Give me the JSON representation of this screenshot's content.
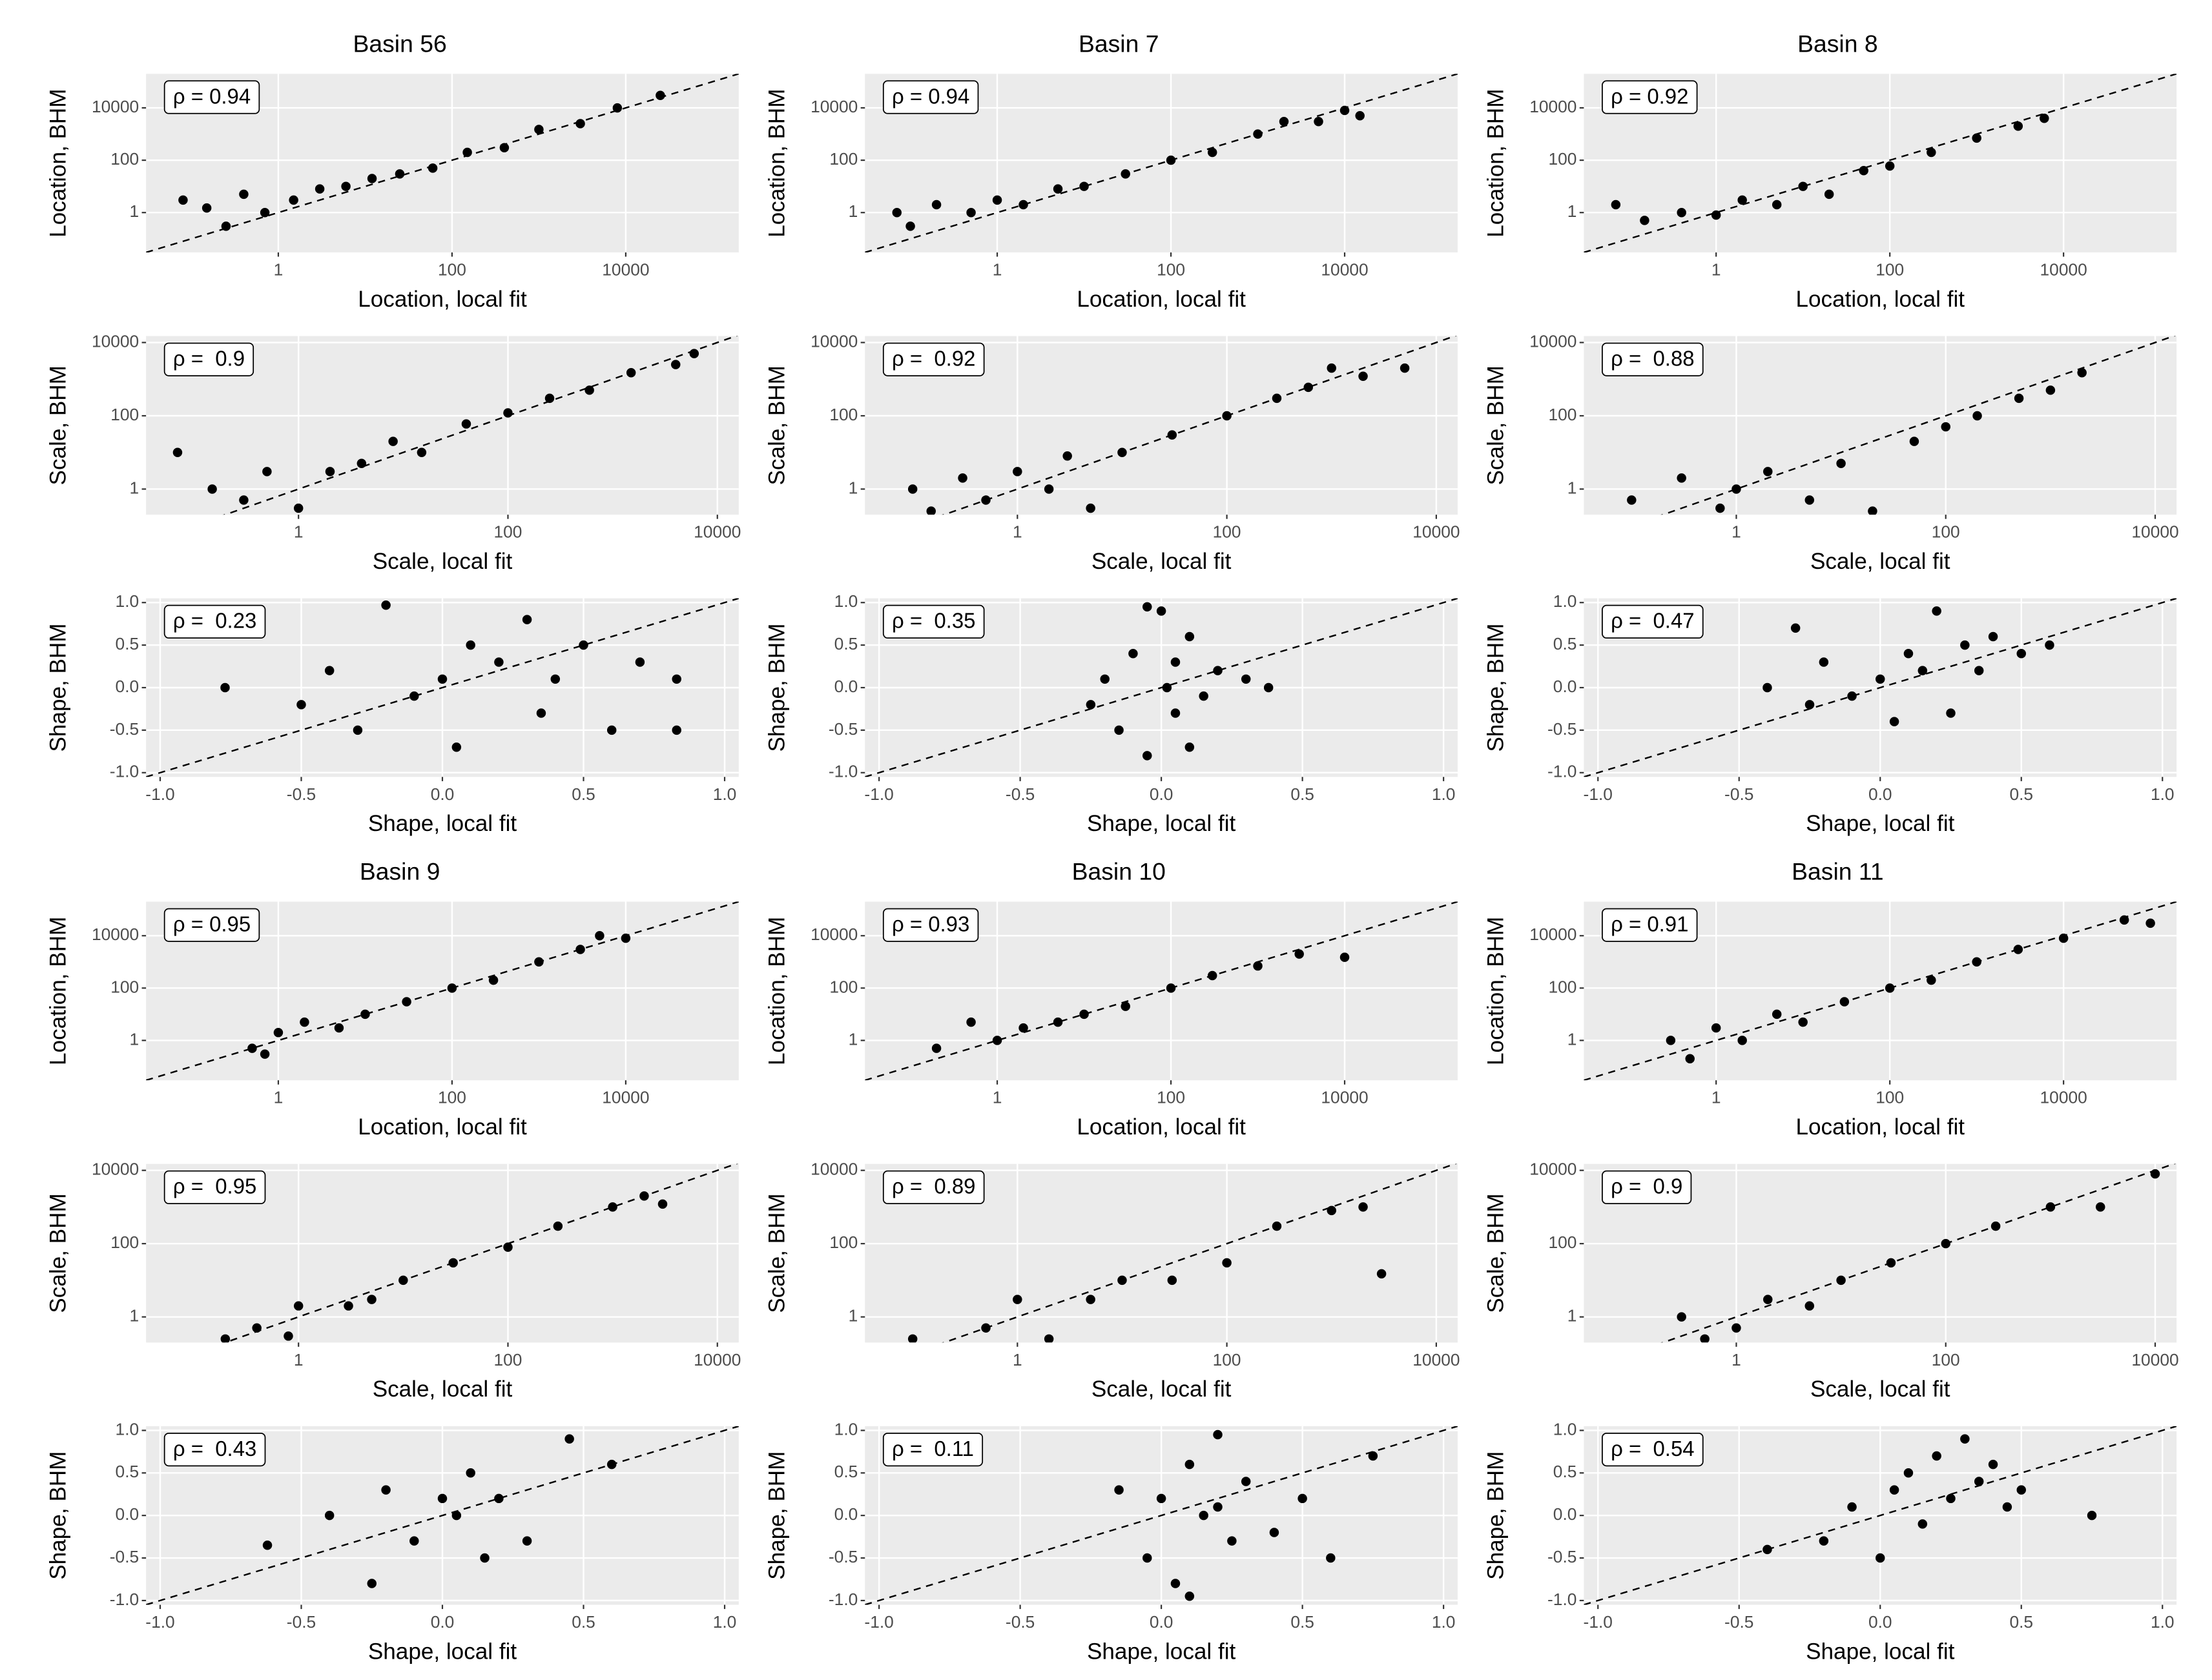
{
  "chart_data": [
    {
      "type": "scatter",
      "title": "Basin 56",
      "annotation": "ρ = 0.94",
      "xlabel": "Location, local fit",
      "ylabel": "Location, BHM",
      "log": true,
      "xlim": [
        0.03,
        200000
      ],
      "ylim": [
        0.03,
        200000
      ],
      "xticks": [
        1,
        100,
        10000
      ],
      "yticks": [
        1,
        100,
        10000
      ],
      "x": [
        0.08,
        0.15,
        0.25,
        0.4,
        0.7,
        1.5,
        3,
        6,
        12,
        25,
        60,
        150,
        400,
        1000,
        3000,
        8000,
        25000
      ],
      "values": [
        3,
        1.5,
        0.3,
        5,
        1,
        3,
        8,
        10,
        20,
        30,
        50,
        200,
        300,
        1500,
        2500,
        10000,
        30000
      ]
    },
    {
      "type": "scatter",
      "annotation": "ρ =  0.9",
      "xlabel": "Scale, local fit",
      "ylabel": "Scale, BHM",
      "log": true,
      "xlim": [
        0.035,
        16000
      ],
      "ylim": [
        0.2,
        15000
      ],
      "xticks": [
        1,
        100,
        10000
      ],
      "yticks": [
        1,
        100,
        10000
      ],
      "x": [
        0.07,
        0.15,
        0.3,
        0.5,
        1,
        2,
        4,
        8,
        15,
        40,
        100,
        250,
        600,
        1500,
        4000,
        6000
      ],
      "values": [
        10,
        1,
        0.5,
        3,
        0.3,
        3,
        5,
        20,
        10,
        60,
        120,
        300,
        500,
        1500,
        2500,
        5000
      ]
    },
    {
      "type": "scatter",
      "annotation": "ρ =  0.23",
      "xlabel": "Shape, local fit",
      "ylabel": "Shape, BHM",
      "log": false,
      "xlim": [
        -1.05,
        1.05
      ],
      "ylim": [
        -1.05,
        1.05
      ],
      "xticks": [
        {
          "value": -1,
          "label": "-1.0"
        },
        {
          "value": -0.5,
          "label": "-0.5"
        },
        {
          "value": 0,
          "label": "0.0"
        },
        {
          "value": 0.5,
          "label": "0.5"
        },
        {
          "value": 1,
          "label": "1.0"
        }
      ],
      "yticks": [
        {
          "value": -1,
          "label": "-1.0"
        },
        {
          "value": -0.5,
          "label": "-0.5"
        },
        {
          "value": 0,
          "label": "0.0"
        },
        {
          "value": 0.5,
          "label": "0.5"
        },
        {
          "value": 1,
          "label": "1.0"
        }
      ],
      "x": [
        -0.77,
        -0.5,
        -0.4,
        -0.3,
        -0.2,
        -0.1,
        0,
        0.05,
        0.1,
        0.2,
        0.3,
        0.35,
        0.4,
        0.5,
        0.6,
        0.7,
        0.83,
        0.83
      ],
      "values": [
        0,
        -0.2,
        0.2,
        -0.5,
        0.97,
        -0.1,
        0.1,
        -0.7,
        0.5,
        0.3,
        0.8,
        -0.3,
        0.1,
        0.5,
        -0.5,
        0.3,
        0.1,
        -0.5
      ]
    },
    {
      "type": "scatter",
      "title": "Basin 7",
      "annotation": "ρ = 0.94",
      "xlabel": "Location, local fit",
      "ylabel": "Location, BHM",
      "log": true,
      "xlim": [
        0.03,
        200000
      ],
      "ylim": [
        0.03,
        200000
      ],
      "xticks": [
        1,
        100,
        10000
      ],
      "yticks": [
        1,
        100,
        10000
      ],
      "x": [
        0.07,
        0.1,
        0.2,
        0.5,
        1,
        2,
        5,
        10,
        30,
        100,
        300,
        1000,
        2000,
        5000,
        10000,
        15000
      ],
      "values": [
        1,
        0.3,
        2,
        1,
        3,
        2,
        8,
        10,
        30,
        100,
        200,
        1000,
        3000,
        3000,
        8000,
        5000
      ]
    },
    {
      "type": "scatter",
      "annotation": "ρ =  0.92",
      "xlabel": "Scale, local fit",
      "ylabel": "Scale, BHM",
      "log": true,
      "xlim": [
        0.035,
        16000
      ],
      "ylim": [
        0.2,
        15000
      ],
      "xticks": [
        1,
        100,
        10000
      ],
      "yticks": [
        1,
        100,
        10000
      ],
      "x": [
        0.1,
        0.15,
        0.3,
        0.5,
        1,
        2,
        3,
        5,
        10,
        30,
        100,
        300,
        600,
        1000,
        2000,
        5000
      ],
      "values": [
        1,
        0.25,
        2,
        0.5,
        3,
        1,
        8,
        0.3,
        10,
        30,
        100,
        300,
        600,
        2000,
        1200,
        2000
      ]
    },
    {
      "type": "scatter",
      "annotation": "ρ =  0.35",
      "xlabel": "Shape, local fit",
      "ylabel": "Shape, BHM",
      "log": false,
      "xlim": [
        -1.05,
        1.05
      ],
      "ylim": [
        -1.05,
        1.05
      ],
      "xticks": [
        {
          "value": -1,
          "label": "-1.0"
        },
        {
          "value": -0.5,
          "label": "-0.5"
        },
        {
          "value": 0,
          "label": "0.0"
        },
        {
          "value": 0.5,
          "label": "0.5"
        },
        {
          "value": 1,
          "label": "1.0"
        }
      ],
      "yticks": [
        {
          "value": -1,
          "label": "-1.0"
        },
        {
          "value": -0.5,
          "label": "-0.5"
        },
        {
          "value": 0,
          "label": "0.0"
        },
        {
          "value": 0.5,
          "label": "0.5"
        },
        {
          "value": 1,
          "label": "1.0"
        }
      ],
      "x": [
        -0.25,
        -0.2,
        -0.15,
        -0.1,
        -0.05,
        0,
        0.02,
        0.05,
        0.1,
        0.15,
        0.2,
        0.3,
        0.38,
        -0.05,
        0.1,
        0.05
      ],
      "values": [
        -0.2,
        0.1,
        -0.5,
        0.4,
        -0.8,
        0.9,
        0,
        -0.3,
        0.6,
        -0.1,
        0.2,
        0.1,
        0,
        0.95,
        -0.7,
        0.3
      ]
    },
    {
      "type": "scatter",
      "title": "Basin 8",
      "annotation": "ρ = 0.92",
      "xlabel": "Location, local fit",
      "ylabel": "Location, BHM",
      "log": true,
      "xlim": [
        0.03,
        200000
      ],
      "ylim": [
        0.03,
        200000
      ],
      "xticks": [
        1,
        100,
        10000
      ],
      "yticks": [
        1,
        100,
        10000
      ],
      "x": [
        0.07,
        0.15,
        0.4,
        1,
        2,
        5,
        10,
        20,
        50,
        100,
        300,
        1000,
        3000,
        6000
      ],
      "values": [
        2,
        0.5,
        1,
        0.8,
        3,
        2,
        10,
        5,
        40,
        60,
        200,
        700,
        2000,
        4000
      ]
    },
    {
      "type": "scatter",
      "annotation": "ρ =  0.88",
      "xlabel": "Scale, local fit",
      "ylabel": "Scale, BHM",
      "log": true,
      "xlim": [
        0.035,
        16000
      ],
      "ylim": [
        0.2,
        15000
      ],
      "xticks": [
        1,
        100,
        10000
      ],
      "yticks": [
        1,
        100,
        10000
      ],
      "x": [
        0.1,
        0.3,
        0.7,
        1,
        2,
        5,
        10,
        20,
        50,
        100,
        200,
        500,
        1000,
        2000
      ],
      "values": [
        0.5,
        2,
        0.3,
        1,
        3,
        0.5,
        5,
        0.25,
        20,
        50,
        100,
        300,
        500,
        1500
      ]
    },
    {
      "type": "scatter",
      "annotation": "ρ =  0.47",
      "xlabel": "Shape, local fit",
      "ylabel": "Shape, BHM",
      "log": false,
      "xlim": [
        -1.05,
        1.05
      ],
      "ylim": [
        -1.05,
        1.05
      ],
      "xticks": [
        {
          "value": -1,
          "label": "-1.0"
        },
        {
          "value": -0.5,
          "label": "-0.5"
        },
        {
          "value": 0,
          "label": "0.0"
        },
        {
          "value": 0.5,
          "label": "0.5"
        },
        {
          "value": 1,
          "label": "1.0"
        }
      ],
      "yticks": [
        {
          "value": -1,
          "label": "-1.0"
        },
        {
          "value": -0.5,
          "label": "-0.5"
        },
        {
          "value": 0,
          "label": "0.0"
        },
        {
          "value": 0.5,
          "label": "0.5"
        },
        {
          "value": 1,
          "label": "1.0"
        }
      ],
      "x": [
        -0.4,
        -0.3,
        -0.25,
        -0.2,
        -0.1,
        0,
        0.05,
        0.1,
        0.15,
        0.2,
        0.25,
        0.3,
        0.35,
        0.4,
        0.5,
        0.6
      ],
      "values": [
        0,
        0.7,
        -0.2,
        0.3,
        -0.1,
        0.1,
        -0.4,
        0.4,
        0.2,
        0.9,
        -0.3,
        0.5,
        0.2,
        0.6,
        0.4,
        0.5
      ]
    },
    {
      "type": "scatter",
      "title": "Basin 9",
      "annotation": "ρ = 0.95",
      "xlabel": "Location, local fit",
      "ylabel": "Location, BHM",
      "log": true,
      "xlim": [
        0.03,
        200000
      ],
      "ylim": [
        0.03,
        200000
      ],
      "xticks": [
        1,
        100,
        10000
      ],
      "yticks": [
        1,
        100,
        10000
      ],
      "x": [
        0.5,
        0.7,
        1,
        2,
        5,
        10,
        30,
        100,
        300,
        1000,
        3000,
        5000,
        10000
      ],
      "values": [
        0.5,
        0.3,
        2,
        5,
        3,
        10,
        30,
        100,
        200,
        1000,
        3000,
        10000,
        8000
      ]
    },
    {
      "type": "scatter",
      "annotation": "ρ =  0.95",
      "xlabel": "Scale, local fit",
      "ylabel": "Scale, BHM",
      "log": true,
      "xlim": [
        0.035,
        16000
      ],
      "ylim": [
        0.2,
        15000
      ],
      "xticks": [
        1,
        100,
        10000
      ],
      "yticks": [
        1,
        100,
        10000
      ],
      "x": [
        0.2,
        0.4,
        0.8,
        1,
        3,
        5,
        10,
        30,
        100,
        300,
        1000,
        2000,
        3000
      ],
      "values": [
        0.25,
        0.5,
        0.3,
        2,
        2,
        3,
        10,
        30,
        80,
        300,
        1000,
        2000,
        1200
      ]
    },
    {
      "type": "scatter",
      "annotation": "ρ =  0.43",
      "xlabel": "Shape, local fit",
      "ylabel": "Shape, BHM",
      "log": false,
      "xlim": [
        -1.05,
        1.05
      ],
      "ylim": [
        -1.05,
        1.05
      ],
      "xticks": [
        {
          "value": -1,
          "label": "-1.0"
        },
        {
          "value": -0.5,
          "label": "-0.5"
        },
        {
          "value": 0,
          "label": "0.0"
        },
        {
          "value": 0.5,
          "label": "0.5"
        },
        {
          "value": 1,
          "label": "1.0"
        }
      ],
      "yticks": [
        {
          "value": -1,
          "label": "-1.0"
        },
        {
          "value": -0.5,
          "label": "-0.5"
        },
        {
          "value": 0,
          "label": "0.0"
        },
        {
          "value": 0.5,
          "label": "0.5"
        },
        {
          "value": 1,
          "label": "1.0"
        }
      ],
      "x": [
        -0.62,
        -0.4,
        -0.25,
        -0.2,
        -0.1,
        0,
        0.05,
        0.1,
        0.15,
        0.2,
        0.3,
        0.45,
        0.6
      ],
      "values": [
        -0.35,
        0,
        -0.8,
        0.3,
        -0.3,
        0.2,
        0,
        0.5,
        -0.5,
        0.2,
        -0.3,
        0.9,
        0.6
      ]
    },
    {
      "type": "scatter",
      "title": "Basin 10",
      "annotation": "ρ = 0.93",
      "xlabel": "Location, local fit",
      "ylabel": "Location, BHM",
      "log": true,
      "xlim": [
        0.03,
        200000
      ],
      "ylim": [
        0.03,
        200000
      ],
      "xticks": [
        1,
        100,
        10000
      ],
      "yticks": [
        1,
        100,
        10000
      ],
      "x": [
        0.2,
        0.5,
        1,
        2,
        5,
        10,
        30,
        100,
        300,
        1000,
        3000,
        10000
      ],
      "values": [
        0.5,
        5,
        1,
        3,
        5,
        10,
        20,
        100,
        300,
        700,
        2000,
        1500
      ]
    },
    {
      "type": "scatter",
      "annotation": "ρ =  0.89",
      "xlabel": "Scale, local fit",
      "ylabel": "Scale, BHM",
      "log": true,
      "xlim": [
        0.035,
        16000
      ],
      "ylim": [
        0.2,
        15000
      ],
      "xticks": [
        1,
        100,
        10000
      ],
      "yticks": [
        1,
        100,
        10000
      ],
      "x": [
        0.1,
        0.5,
        1,
        2,
        5,
        10,
        30,
        100,
        300,
        1000,
        2000,
        3000
      ],
      "values": [
        0.25,
        0.5,
        3,
        0.25,
        3,
        10,
        10,
        30,
        300,
        800,
        1000,
        15
      ]
    },
    {
      "type": "scatter",
      "annotation": "ρ =  0.11",
      "xlabel": "Shape, local fit",
      "ylabel": "Shape, BHM",
      "log": false,
      "xlim": [
        -1.05,
        1.05
      ],
      "ylim": [
        -1.05,
        1.05
      ],
      "xticks": [
        {
          "value": -1,
          "label": "-1.0"
        },
        {
          "value": -0.5,
          "label": "-0.5"
        },
        {
          "value": 0,
          "label": "0.0"
        },
        {
          "value": 0.5,
          "label": "0.5"
        },
        {
          "value": 1,
          "label": "1.0"
        }
      ],
      "yticks": [
        {
          "value": -1,
          "label": "-1.0"
        },
        {
          "value": -0.5,
          "label": "-0.5"
        },
        {
          "value": 0,
          "label": "0.0"
        },
        {
          "value": 0.5,
          "label": "0.5"
        },
        {
          "value": 1,
          "label": "1.0"
        }
      ],
      "x": [
        -0.15,
        -0.05,
        0,
        0.05,
        0.1,
        0.15,
        0.2,
        0.25,
        0.3,
        0.4,
        0.5,
        0.6,
        0.75,
        0.1,
        0.2
      ],
      "values": [
        0.3,
        -0.5,
        0.2,
        -0.8,
        0.6,
        0,
        0.95,
        -0.3,
        0.4,
        -0.2,
        0.2,
        -0.5,
        0.7,
        -0.95,
        0.1
      ]
    },
    {
      "type": "scatter",
      "title": "Basin 11",
      "annotation": "ρ = 0.91",
      "xlabel": "Location, local fit",
      "ylabel": "Location, BHM",
      "log": true,
      "xlim": [
        0.03,
        200000
      ],
      "ylim": [
        0.03,
        200000
      ],
      "xticks": [
        1,
        100,
        10000
      ],
      "yticks": [
        1,
        100,
        10000
      ],
      "x": [
        0.3,
        0.5,
        1,
        2,
        5,
        10,
        30,
        100,
        300,
        1000,
        3000,
        10000,
        50000,
        100000
      ],
      "values": [
        1,
        0.2,
        3,
        1,
        10,
        5,
        30,
        100,
        200,
        1000,
        3000,
        8000,
        40000,
        30000
      ]
    },
    {
      "type": "scatter",
      "annotation": "ρ =  0.9",
      "xlabel": "Scale, local fit",
      "ylabel": "Scale, BHM",
      "log": true,
      "xlim": [
        0.035,
        16000
      ],
      "ylim": [
        0.2,
        15000
      ],
      "xticks": [
        1,
        100,
        10000
      ],
      "yticks": [
        1,
        100,
        10000
      ],
      "x": [
        0.3,
        0.5,
        1,
        2,
        5,
        10,
        30,
        100,
        300,
        1000,
        3000,
        10000
      ],
      "values": [
        1,
        0.25,
        0.5,
        3,
        2,
        10,
        30,
        100,
        300,
        1000,
        1000,
        8000
      ]
    },
    {
      "type": "scatter",
      "annotation": "ρ =  0.54",
      "xlabel": "Shape, local fit",
      "ylabel": "Shape, BHM",
      "log": false,
      "xlim": [
        -1.05,
        1.05
      ],
      "ylim": [
        -1.05,
        1.05
      ],
      "xticks": [
        {
          "value": -1,
          "label": "-1.0"
        },
        {
          "value": -0.5,
          "label": "-0.5"
        },
        {
          "value": 0,
          "label": "0.0"
        },
        {
          "value": 0.5,
          "label": "0.5"
        },
        {
          "value": 1,
          "label": "1.0"
        }
      ],
      "yticks": [
        {
          "value": -1,
          "label": "-1.0"
        },
        {
          "value": -0.5,
          "label": "-0.5"
        },
        {
          "value": 0,
          "label": "0.0"
        },
        {
          "value": 0.5,
          "label": "0.5"
        },
        {
          "value": 1,
          "label": "1.0"
        }
      ],
      "x": [
        -0.4,
        -0.2,
        -0.1,
        0,
        0.05,
        0.1,
        0.15,
        0.2,
        0.25,
        0.3,
        0.35,
        0.4,
        0.45,
        0.5,
        0.75
      ],
      "values": [
        -0.4,
        -0.3,
        0.1,
        -0.5,
        0.3,
        0.5,
        -0.1,
        0.7,
        0.2,
        0.9,
        0.4,
        0.6,
        0.1,
        0.3,
        0
      ]
    }
  ]
}
